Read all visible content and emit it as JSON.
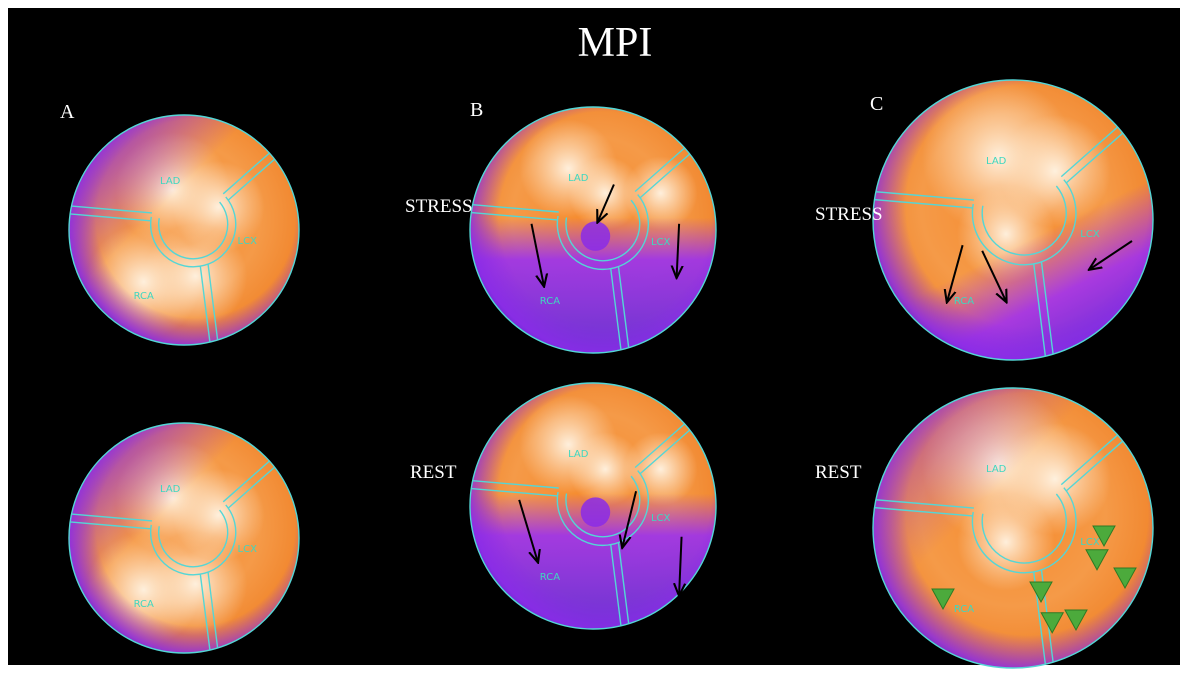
{
  "title": "MPI",
  "panels": [
    {
      "label": "A",
      "maps": [
        {
          "regions": [
            "LAD",
            "LCX",
            "RCA"
          ]
        },
        {
          "regions": [
            "LAD",
            "LCX",
            "RCA"
          ]
        }
      ]
    },
    {
      "label": "B",
      "maps": [
        {
          "condition": "STRESS",
          "regions": [
            "LAD",
            "LCX",
            "RCA"
          ]
        },
        {
          "condition": "REST",
          "regions": [
            "LAD",
            "LCX",
            "RCA"
          ]
        }
      ]
    },
    {
      "label": "C",
      "maps": [
        {
          "condition": "STRESS",
          "regions": [
            "LAD",
            "LCX",
            "RCA"
          ]
        },
        {
          "condition": "REST",
          "regions": [
            "LAD",
            "LCX",
            "RCA"
          ]
        }
      ]
    }
  ]
}
